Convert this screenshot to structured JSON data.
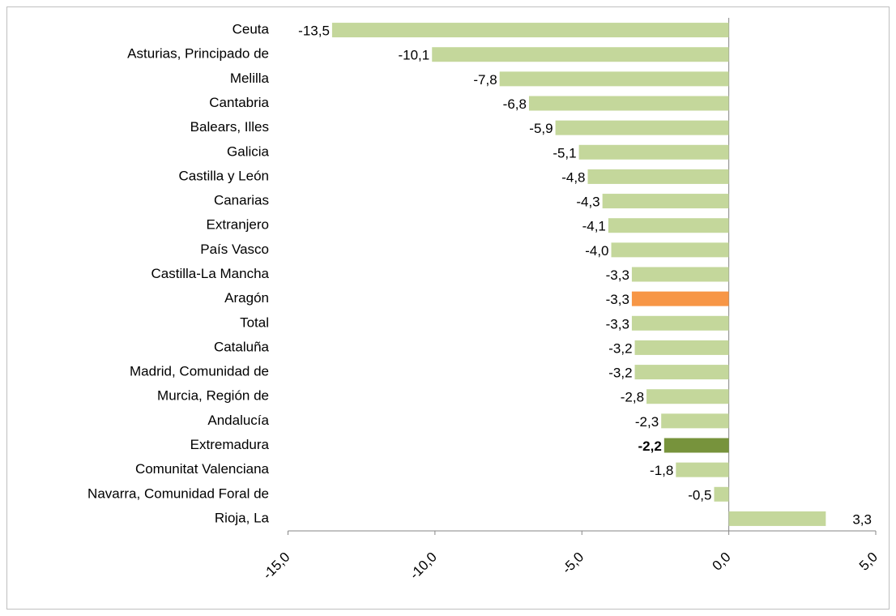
{
  "chart_data": {
    "type": "bar",
    "orientation": "horizontal",
    "categories": [
      "Ceuta",
      "Asturias, Principado de",
      "Melilla",
      "Cantabria",
      "Balears, Illes",
      "Galicia",
      "Castilla y León",
      "Canarias",
      "Extranjero",
      "País Vasco",
      "Castilla-La Mancha",
      "Aragón",
      "Total",
      "Cataluña",
      "Madrid, Comunidad de",
      "Murcia, Región de",
      "Andalucía",
      "Extremadura",
      "Comunitat Valenciana",
      "Navarra, Comunidad Foral de",
      "Rioja, La"
    ],
    "values": [
      -13.5,
      -10.1,
      -7.8,
      -6.8,
      -5.9,
      -5.1,
      -4.8,
      -4.3,
      -4.1,
      -4.0,
      -3.3,
      -3.3,
      -3.3,
      -3.2,
      -3.2,
      -2.8,
      -2.3,
      -2.2,
      -1.8,
      -0.5,
      3.3
    ],
    "value_labels": [
      "-13,5",
      "-10,1",
      "-7,8",
      "-6,8",
      "-5,9",
      "-5,1",
      "-4,8",
      "-4,3",
      "-4,1",
      "-4,0",
      "-3,3",
      "-3,3",
      "-3,3",
      "-3,2",
      "-3,2",
      "-2,8",
      "-2,3",
      "-2,2",
      "-1,8",
      "-0,5",
      "3,3"
    ],
    "colors": [
      "#c4d79b",
      "#c4d79b",
      "#c4d79b",
      "#c4d79b",
      "#c4d79b",
      "#c4d79b",
      "#c4d79b",
      "#c4d79b",
      "#c4d79b",
      "#c4d79b",
      "#c4d79b",
      "#f79646",
      "#c4d79b",
      "#c4d79b",
      "#c4d79b",
      "#c4d79b",
      "#c4d79b",
      "#77933c",
      "#c4d79b",
      "#c4d79b",
      "#c4d79b"
    ],
    "value_label_bold": [
      false,
      false,
      false,
      false,
      false,
      false,
      false,
      false,
      false,
      false,
      false,
      false,
      false,
      false,
      false,
      false,
      false,
      true,
      false,
      false,
      false
    ],
    "xlim": [
      -15,
      5
    ],
    "xticks": [
      {
        "value": -15,
        "label": "-15,0"
      },
      {
        "value": -10,
        "label": "-10,0"
      },
      {
        "value": -5,
        "label": "-5,0"
      },
      {
        "value": 0,
        "label": "0,0"
      },
      {
        "value": 5,
        "label": "5,0"
      }
    ],
    "grid": false
  }
}
